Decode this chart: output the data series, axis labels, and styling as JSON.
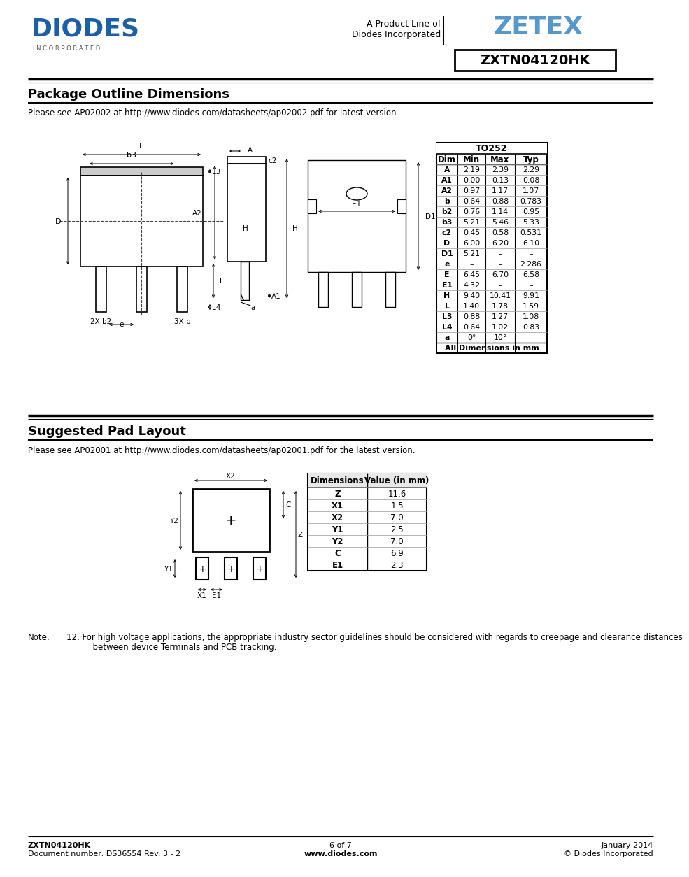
{
  "page_title": "ZXTN04120HK",
  "company_line1": "A Product Line of",
  "company_line2": "Diodes Incorporated",
  "section1_title": "Package Outline Dimensions",
  "section1_note": "Please see AP02002 at http://www.diodes.com/datasheets/ap02002.pdf for latest version.",
  "section2_title": "Suggested Pad Layout",
  "section2_note": "Please see AP02001 at http://www.diodes.com/datasheets/ap02001.pdf for the latest version.",
  "table1_header": "TO252",
  "table1_cols": [
    "Dim",
    "Min",
    "Max",
    "Typ"
  ],
  "table1_rows": [
    [
      "A",
      "2.19",
      "2.39",
      "2.29"
    ],
    [
      "A1",
      "0.00",
      "0.13",
      "0.08"
    ],
    [
      "A2",
      "0.97",
      "1.17",
      "1.07"
    ],
    [
      "b",
      "0.64",
      "0.88",
      "0.783"
    ],
    [
      "b2",
      "0.76",
      "1.14",
      "0.95"
    ],
    [
      "b3",
      "5.21",
      "5.46",
      "5.33"
    ],
    [
      "c2",
      "0.45",
      "0.58",
      "0.531"
    ],
    [
      "D",
      "6.00",
      "6.20",
      "6.10"
    ],
    [
      "D1",
      "5.21",
      "–",
      "–"
    ],
    [
      "e",
      "–",
      "–",
      "2.286"
    ],
    [
      "E",
      "6.45",
      "6.70",
      "6.58"
    ],
    [
      "E1",
      "4.32",
      "–",
      "–"
    ],
    [
      "H",
      "9.40",
      "10.41",
      "9.91"
    ],
    [
      "L",
      "1.40",
      "1.78",
      "1.59"
    ],
    [
      "L3",
      "0.88",
      "1.27",
      "1.08"
    ],
    [
      "L4",
      "0.64",
      "1.02",
      "0.83"
    ],
    [
      "a",
      "0°",
      "10°",
      "–"
    ]
  ],
  "table1_footer": "All Dimensions in mm",
  "table2_cols": [
    "Dimensions",
    "Value (in mm)"
  ],
  "table2_rows": [
    [
      "Z",
      "11.6"
    ],
    [
      "X1",
      "1.5"
    ],
    [
      "X2",
      "7.0"
    ],
    [
      "Y1",
      "2.5"
    ],
    [
      "Y2",
      "7.0"
    ],
    [
      "C",
      "6.9"
    ],
    [
      "E1",
      "2.3"
    ]
  ],
  "footer_left1": "ZXTN04120HK",
  "footer_left2": "Document number: DS36554 Rev. 3 - 2",
  "footer_center1": "6 of 7",
  "footer_center2": "www.diodes.com",
  "footer_right1": "January 2014",
  "footer_right2": "© Diodes Incorporated",
  "note_label": "Note:",
  "note_text": "12. For high voltage applications, the appropriate industry sector guidelines should be considered with regards to creepage and clearance distances\n          between device Terminals and PCB tracking.",
  "bg_color": "#ffffff",
  "text_color": "#000000",
  "blue_color": "#1a5fa8",
  "diag_color": "#000000"
}
